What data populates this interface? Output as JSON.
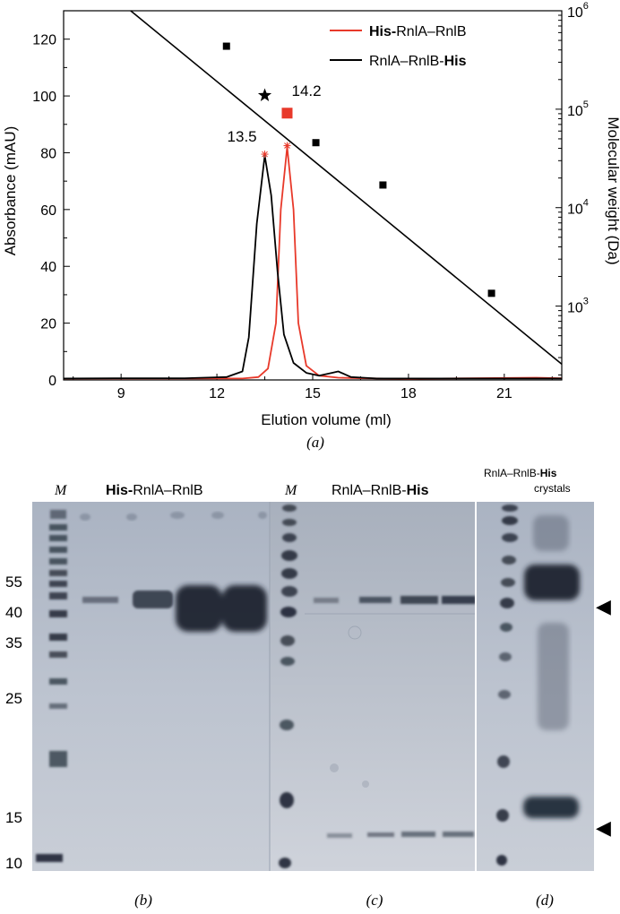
{
  "panel_a": {
    "caption": "(a)",
    "chart_data": {
      "type": "line",
      "xlabel": "Elution volume (ml)",
      "ylabel": "Absorbance (mAU)",
      "y2label": "Molecular weight (Da)",
      "xlim": [
        7.2,
        22.8
      ],
      "ylim": [
        0,
        130
      ],
      "y2lim_log10": [
        2.25,
        6.0
      ],
      "x_ticks": [
        9,
        12,
        15,
        18,
        21
      ],
      "y_ticks": [
        0,
        20,
        40,
        60,
        80,
        100,
        120
      ],
      "y2_ticks": [
        {
          "base": "10",
          "exp": "3",
          "log10": 3
        },
        {
          "base": "10",
          "exp": "4",
          "log10": 4
        },
        {
          "base": "10",
          "exp": "5",
          "log10": 5
        },
        {
          "base": "10",
          "exp": "6",
          "log10": 6
        }
      ],
      "legend": "top-right",
      "series": [
        {
          "name_bold": "His-",
          "name_rest": "RnlA–RnlB",
          "bold_first": true,
          "color": "#e8392a",
          "peak_label": "14.2",
          "points": [
            [
              7.2,
              0.5
            ],
            [
              10,
              0.5
            ],
            [
              12.8,
              0.5
            ],
            [
              13.3,
              1
            ],
            [
              13.6,
              4
            ],
            [
              13.85,
              20
            ],
            [
              14.0,
              60
            ],
            [
              14.2,
              82
            ],
            [
              14.4,
              60
            ],
            [
              14.55,
              20
            ],
            [
              14.8,
              5
            ],
            [
              15.2,
              1.5
            ],
            [
              15.8,
              0.8
            ],
            [
              16.5,
              0.6
            ],
            [
              18,
              0.4
            ],
            [
              22,
              0.8
            ],
            [
              22.8,
              0.6
            ]
          ]
        },
        {
          "name_bold": "His",
          "name_rest": "RnlA–RnlB-",
          "bold_first": false,
          "color": "#000000",
          "peak_label": "13.5",
          "points": [
            [
              7.2,
              0.5
            ],
            [
              9,
              0.6
            ],
            [
              11,
              0.6
            ],
            [
              12.3,
              1
            ],
            [
              12.8,
              3
            ],
            [
              13.0,
              15
            ],
            [
              13.25,
              55
            ],
            [
              13.5,
              79
            ],
            [
              13.7,
              65
            ],
            [
              13.9,
              38
            ],
            [
              14.1,
              16
            ],
            [
              14.4,
              6
            ],
            [
              14.8,
              2.5
            ],
            [
              15.2,
              1.5
            ],
            [
              15.6,
              2.5
            ],
            [
              15.8,
              3
            ],
            [
              16.2,
              1
            ],
            [
              17,
              0.5
            ],
            [
              22.8,
              0.5
            ]
          ]
        }
      ],
      "peak_markers": [
        {
          "x": 13.5,
          "y": 79.5,
          "color": "#e8392a"
        },
        {
          "x": 14.2,
          "y": 82.5,
          "color": "#e8392a"
        }
      ],
      "calibration_points_log10": [
        [
          12.3,
          5.64
        ],
        [
          15.1,
          4.66
        ],
        [
          17.2,
          4.23
        ],
        [
          20.6,
          3.13
        ]
      ],
      "calibration_line_log10": [
        [
          9.3,
          6.0
        ],
        [
          22.8,
          2.41
        ]
      ],
      "calibration_star_log10": [
        13.5,
        5.14
      ],
      "calibration_square_log10": [
        14.2,
        4.96
      ],
      "calibration_square_color": "#e8392a"
    }
  },
  "gel_b": {
    "caption": "(b)",
    "marker_label": "M",
    "title_bold": "His-",
    "title_rest": "RnlA–RnlB",
    "mw_labels": [
      "55",
      "40",
      "35",
      "25",
      "15",
      "10"
    ]
  },
  "gel_c": {
    "caption": "(c)",
    "marker_label": "M",
    "title_rest": "RnlA–RnlB-",
    "title_bold": "His"
  },
  "gel_d": {
    "caption": "(d)",
    "title_line1_rest": "RnlA–RnlB-",
    "title_line1_bold": "His",
    "title_line2": "crystals",
    "arrow_upper": "◀",
    "arrow_lower": "◀"
  }
}
